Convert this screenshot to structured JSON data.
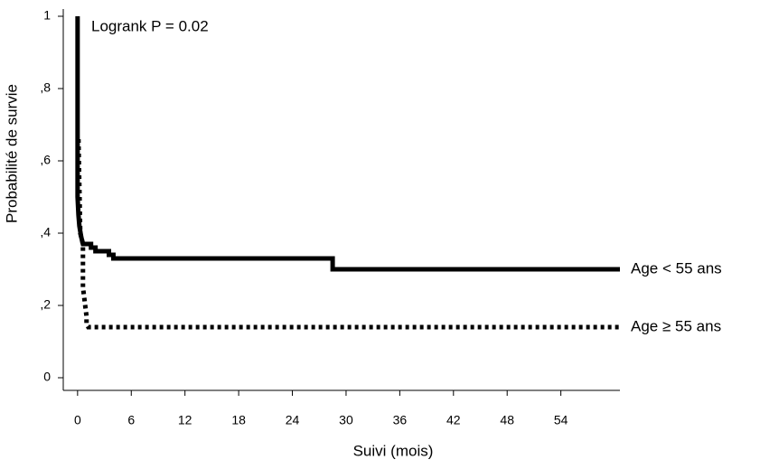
{
  "chart_data": {
    "type": "step-line",
    "annotation": "Logrank P = 0.02",
    "ylabel": "Probabilité de survie",
    "xlabel": "Suivi (mois)",
    "xlim": [
      -1.6,
      60.6
    ],
    "ylim": [
      -0.035,
      1.02
    ],
    "xticks": [
      0,
      6,
      12,
      18,
      24,
      30,
      36,
      42,
      48,
      54
    ],
    "yticks": [
      0,
      {
        "value": 0.2,
        "label": ",2"
      },
      {
        "value": 0.4,
        "label": ",4"
      },
      {
        "value": 0.6,
        "label": ",6"
      },
      {
        "value": 0.8,
        "label": ",8"
      },
      1
    ],
    "series": [
      {
        "name": "Age < 55 ans",
        "color": "#000000",
        "style": "solid",
        "x": [
          0,
          0,
          0.1,
          0.2,
          0.4,
          0.6,
          1.5,
          1.5,
          2,
          2,
          3.5,
          3.5,
          4,
          4,
          28.5,
          28.5,
          60.6
        ],
        "values": [
          1,
          0.5,
          0.45,
          0.42,
          0.39,
          0.37,
          0.37,
          0.36,
          0.36,
          0.35,
          0.35,
          0.34,
          0.34,
          0.33,
          0.33,
          0.3,
          0.3
        ]
      },
      {
        "name": "Age ≥ 55 ans",
        "color": "#000000",
        "style": "dotted",
        "x": [
          0.1,
          0.3,
          0.6,
          0.6,
          1,
          1,
          1.2,
          60.6
        ],
        "values": [
          0.66,
          0.4,
          0.37,
          0.25,
          0.17,
          0.15,
          0.14,
          0.14
        ]
      }
    ]
  }
}
